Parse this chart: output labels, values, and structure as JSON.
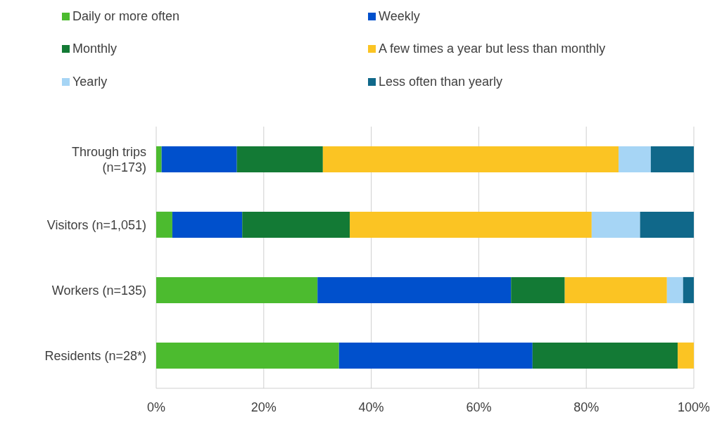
{
  "chart_data": {
    "type": "bar",
    "orientation": "horizontal",
    "stacked": true,
    "categories": [
      "Through trips (n=173)",
      "Visitors (n=1,051)",
      "Workers (n=135)",
      "Residents (n=28*)"
    ],
    "series": [
      {
        "name": "Daily or more often",
        "color": "#4cbb2f",
        "values": [
          1,
          3,
          30,
          34
        ]
      },
      {
        "name": "Weekly",
        "color": "#0050cc",
        "values": [
          14,
          13,
          36,
          36
        ]
      },
      {
        "name": "Monthly",
        "color": "#137a35",
        "values": [
          16,
          20,
          10,
          27
        ]
      },
      {
        "name": "A few times a year but less than monthly",
        "color": "#fbc423",
        "values": [
          55,
          45,
          19,
          3
        ]
      },
      {
        "name": "Yearly",
        "color": "#a6d5f5",
        "values": [
          6,
          9,
          3,
          0
        ]
      },
      {
        "name": "Less often than yearly",
        "color": "#10688a",
        "values": [
          8,
          10,
          2,
          0
        ]
      }
    ],
    "xlim": [
      0,
      100
    ],
    "xticks": [
      {
        "value": 0,
        "label": "0%"
      },
      {
        "value": 20,
        "label": "20%"
      },
      {
        "value": 40,
        "label": "40%"
      },
      {
        "value": 60,
        "label": "60%"
      },
      {
        "value": 80,
        "label": "80%"
      },
      {
        "value": 100,
        "label": "100%"
      }
    ],
    "grid": "x",
    "legend": "top"
  }
}
